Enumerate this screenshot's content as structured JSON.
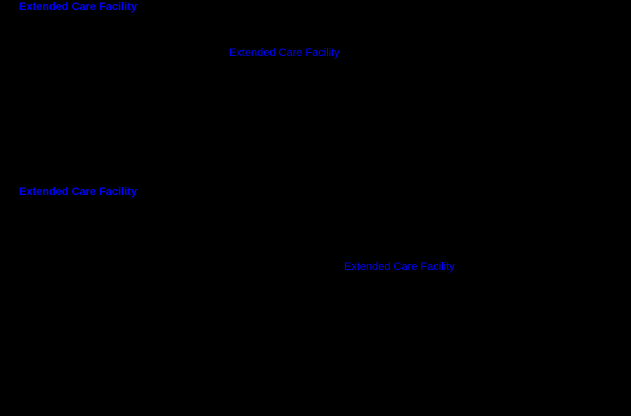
{
  "canvas": {
    "background_color": "#000000",
    "label_color": "#0000ff"
  },
  "labels": [
    {
      "text": "Extended Care Facility",
      "emphasis": "bold"
    },
    {
      "text": "Extended Care Facility",
      "emphasis": "normal"
    },
    {
      "text": "Extended Care Facility",
      "emphasis": "bold"
    },
    {
      "text": "Extended Care Facility",
      "emphasis": "normal"
    }
  ]
}
